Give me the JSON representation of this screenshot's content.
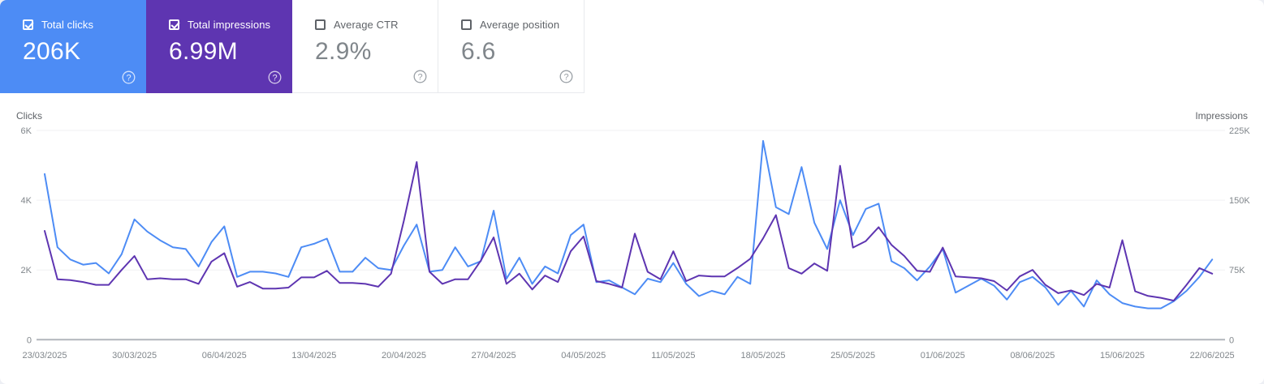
{
  "cards": [
    {
      "label": "Total clicks",
      "value": "206K",
      "checked": true,
      "color": "#4d8cf5",
      "help_glyph": "?"
    },
    {
      "label": "Total impressions",
      "value": "6.99M",
      "checked": true,
      "color": "#5e35b1",
      "help_glyph": "?"
    },
    {
      "label": "Average CTR",
      "value": "2.9%",
      "checked": false,
      "color": "#ffffff",
      "help_glyph": "?"
    },
    {
      "label": "Average position",
      "value": "6.6",
      "checked": false,
      "color": "#ffffff",
      "help_glyph": "?"
    }
  ],
  "chart_data": {
    "type": "line",
    "x_frequency": "daily",
    "x_start": "23/03/2025",
    "x_end": "22/06/2025",
    "x_tick_labels": [
      "23/03/2025",
      "30/03/2025",
      "06/04/2025",
      "13/04/2025",
      "20/04/2025",
      "27/04/2025",
      "04/05/2025",
      "11/05/2025",
      "18/05/2025",
      "25/05/2025",
      "01/06/2025",
      "08/06/2025",
      "15/06/2025",
      "22/06/2025"
    ],
    "grid": true,
    "left_axis": {
      "title": "Clicks",
      "tick_labels": [
        "6K",
        "4K",
        "2K",
        "0"
      ],
      "tick_values": [
        6000,
        4000,
        2000,
        0
      ],
      "max": 6000
    },
    "right_axis": {
      "title": "Impressions",
      "tick_labels": [
        "225K",
        "150K",
        "75K",
        "0"
      ],
      "tick_values": [
        225000,
        150000,
        75000,
        0
      ],
      "max": 225000
    },
    "series": [
      {
        "name": "Total clicks",
        "axis": "left",
        "color": "#4d8cf5",
        "values": [
          4750,
          2650,
          2300,
          2150,
          2200,
          1900,
          2450,
          3450,
          3100,
          2850,
          2650,
          2600,
          2100,
          2800,
          3250,
          1800,
          1950,
          1950,
          1900,
          1800,
          2650,
          2750,
          2900,
          1950,
          1950,
          2350,
          2050,
          2000,
          2700,
          3300,
          1950,
          2000,
          2650,
          2100,
          2250,
          3700,
          1750,
          2350,
          1600,
          2100,
          1900,
          3000,
          3300,
          1650,
          1700,
          1500,
          1300,
          1750,
          1650,
          2200,
          1600,
          1250,
          1400,
          1300,
          1800,
          1600,
          5700,
          3800,
          3600,
          4950,
          3350,
          2600,
          4000,
          3000,
          3750,
          3900,
          2250,
          2050,
          1700,
          2100,
          2600,
          1350,
          1550,
          1750,
          1550,
          1150,
          1650,
          1800,
          1500,
          1000,
          1400,
          950,
          1700,
          1300,
          1050,
          950,
          900,
          900,
          1100,
          1400,
          1800,
          2300
        ]
      },
      {
        "name": "Total impressions",
        "axis": "right",
        "color": "#5e35b1",
        "values": [
          117000,
          65000,
          64000,
          62000,
          59000,
          59000,
          75000,
          90000,
          65000,
          66000,
          65000,
          65000,
          60000,
          84000,
          93000,
          57000,
          62000,
          55000,
          55000,
          56000,
          67000,
          67000,
          74000,
          61000,
          61000,
          60000,
          57000,
          71000,
          128000,
          191000,
          73000,
          60000,
          65000,
          65000,
          85000,
          110000,
          60000,
          71000,
          54000,
          69000,
          62000,
          95000,
          111000,
          63000,
          60000,
          56000,
          114000,
          73000,
          65000,
          95000,
          63000,
          69000,
          68000,
          68000,
          77000,
          87000,
          109000,
          134000,
          77000,
          71000,
          82000,
          74000,
          187000,
          99000,
          106000,
          121000,
          102000,
          90000,
          74000,
          73000,
          99000,
          68000,
          67000,
          66000,
          63000,
          53000,
          68000,
          75000,
          59000,
          50000,
          53000,
          48000,
          60000,
          56000,
          107000,
          52000,
          47000,
          45000,
          42000,
          59000,
          77000,
          71000
        ]
      }
    ]
  }
}
